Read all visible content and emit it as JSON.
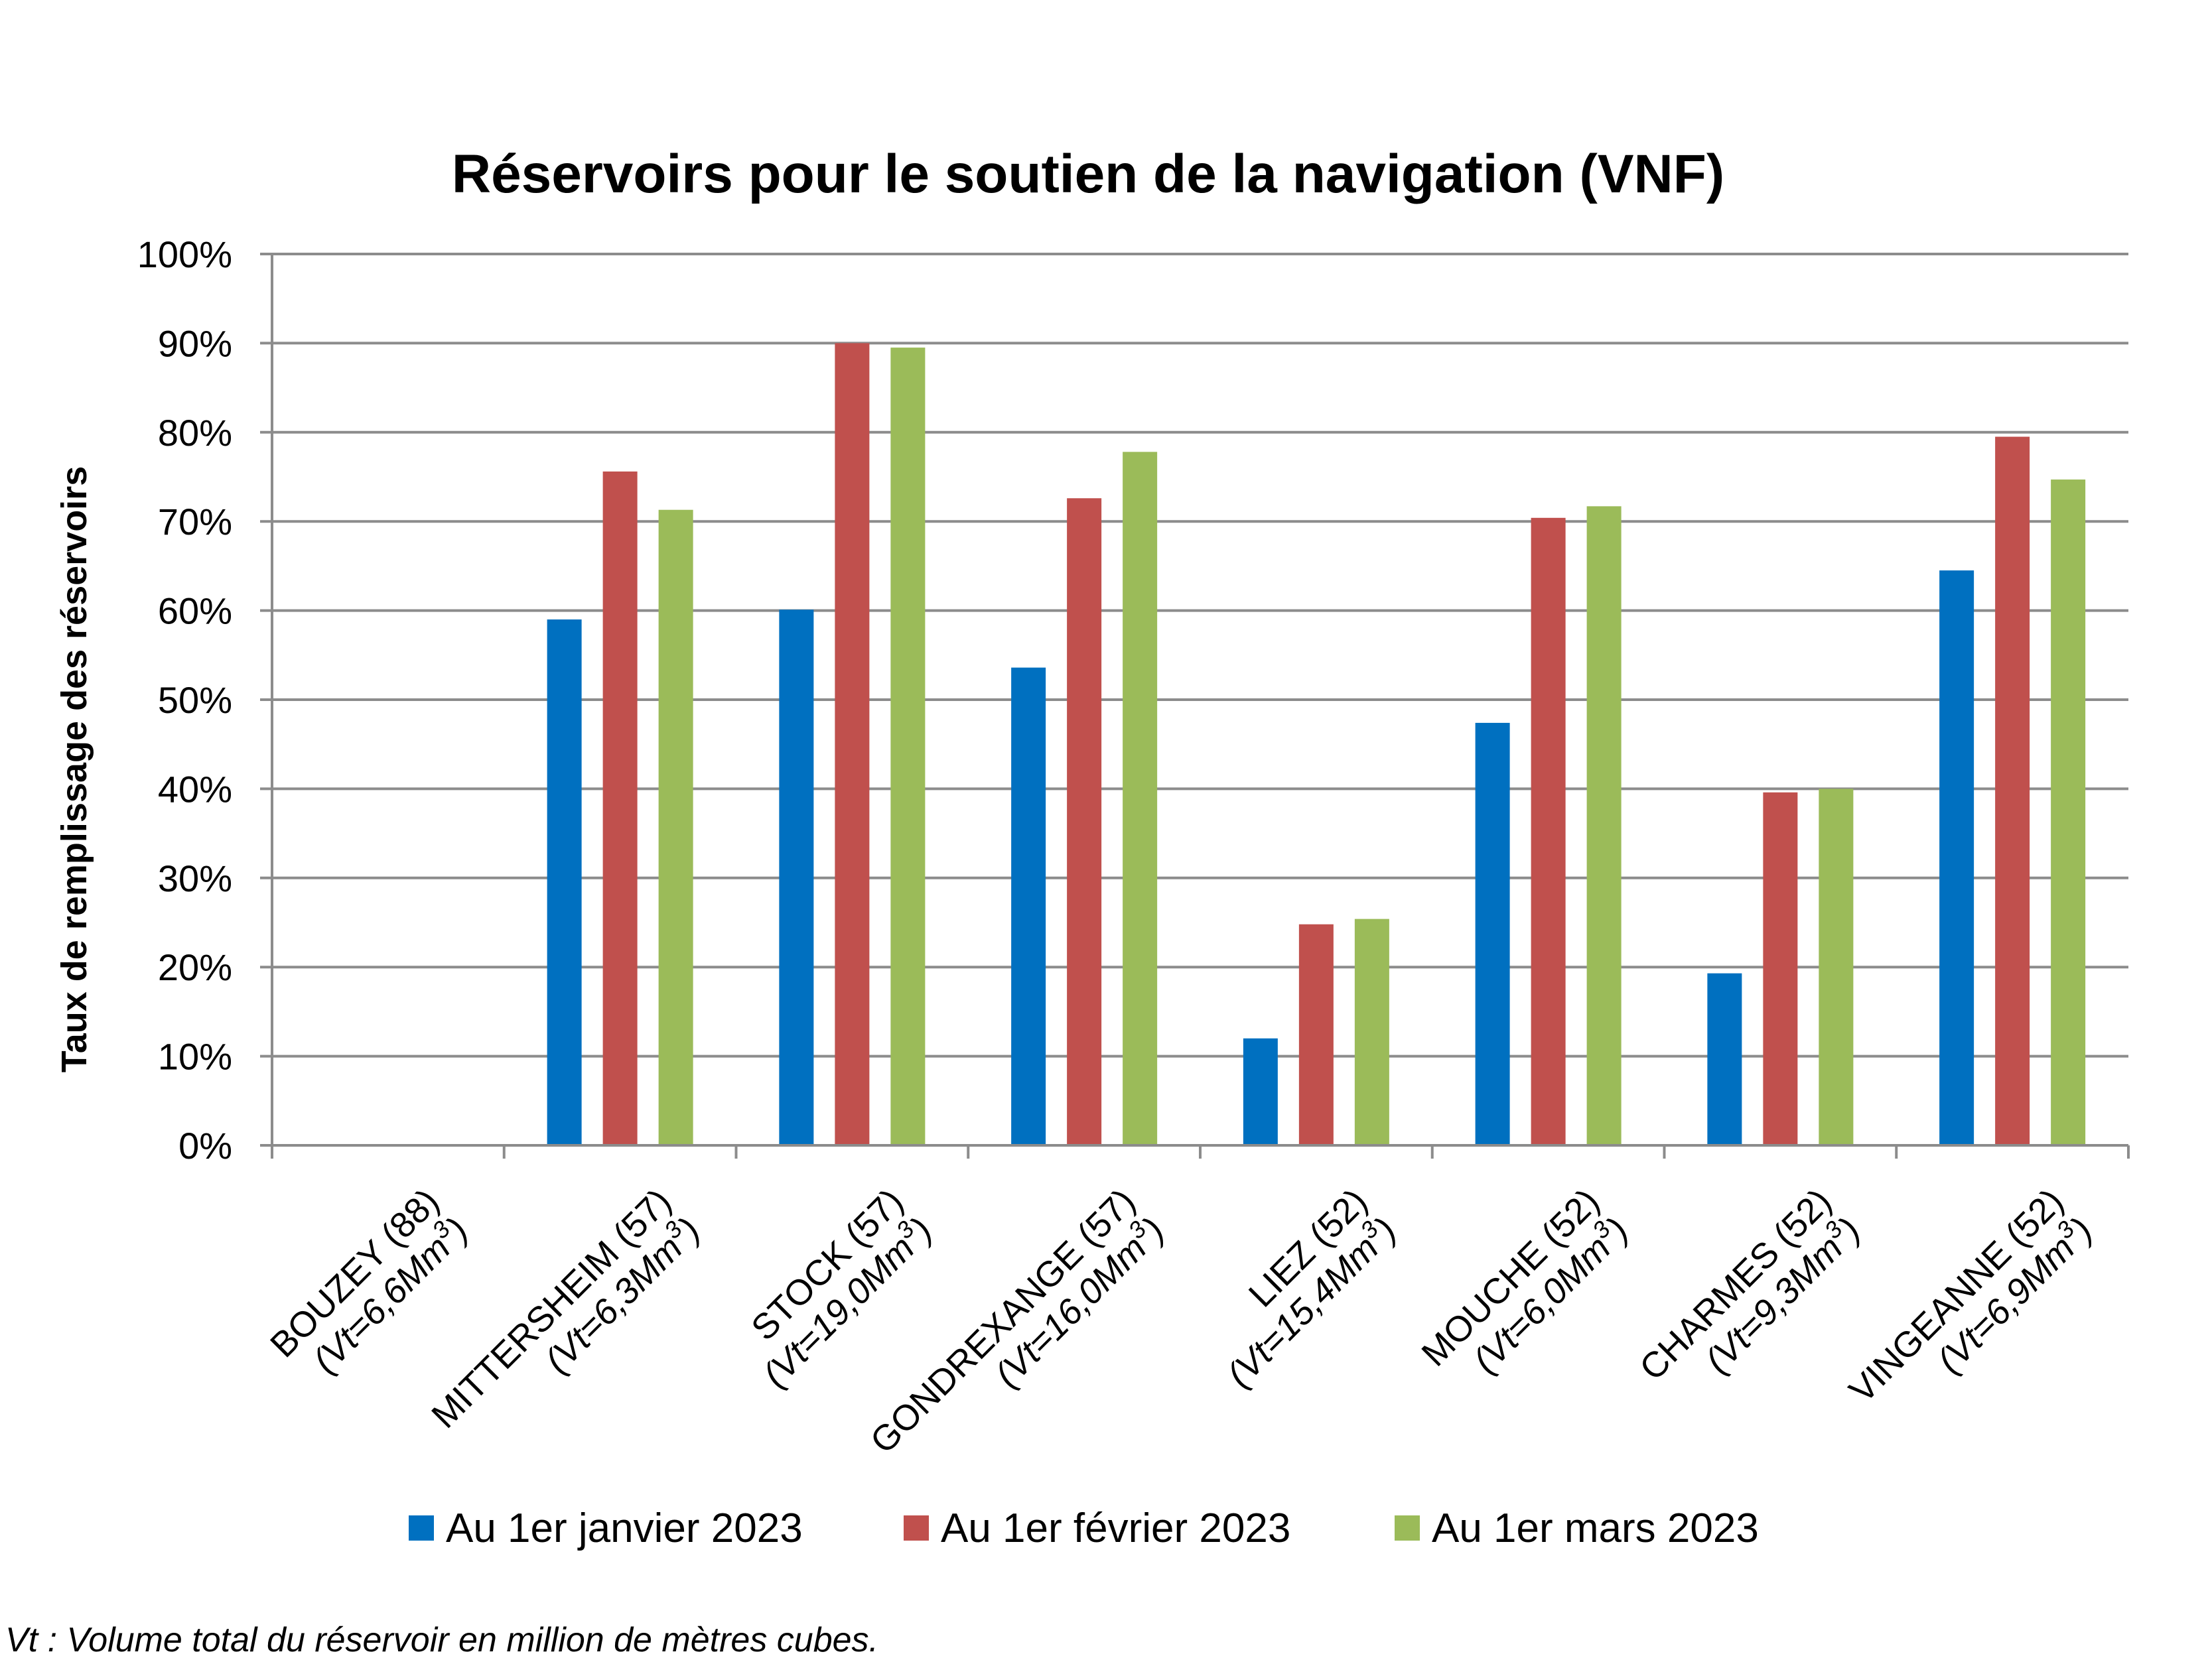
{
  "chart_data": {
    "type": "bar",
    "title": "Réservoirs pour le soutien de la navigation (VNF)",
    "ylabel": "Taux de remplissage des réservoirs",
    "xlabel": "",
    "ylim": [
      0,
      100
    ],
    "y_ticks": [
      "0%",
      "10%",
      "20%",
      "30%",
      "40%",
      "50%",
      "60%",
      "70%",
      "80%",
      "90%",
      "100%"
    ],
    "categories": [
      {
        "name": "BOUZEY (88)",
        "sub": "(Vt=6,6Mm",
        "sup": "3",
        "close": ")"
      },
      {
        "name": "MITTERSHEIM (57)",
        "sub": "(Vt=6,3Mm",
        "sup": "3",
        "close": ")"
      },
      {
        "name": "STOCK (57)",
        "sub": "(Vt=19,0Mm",
        "sup": "3",
        "close": ")"
      },
      {
        "name": "GONDREXANGE (57)",
        "sub": "(Vt=16,0Mm",
        "sup": "3",
        "close": ")"
      },
      {
        "name": "LIEZ (52)",
        "sub": "(Vt=15,4Mm",
        "sup": "3",
        "close": ")"
      },
      {
        "name": "MOUCHE (52)",
        "sub": "(Vt=6,0Mm",
        "sup": "3",
        "close": ")"
      },
      {
        "name": "CHARMES (52)",
        "sub": "(Vt=9,3Mm",
        "sup": "3",
        "close": ")"
      },
      {
        "name": "VINGEANNE (52)",
        "sub": "(Vt=6,9Mm",
        "sup": "3",
        "close": ")"
      }
    ],
    "series": [
      {
        "name": "Au 1er janvier 2023",
        "color": "#0070C0",
        "values": [
          null,
          59.0,
          60.1,
          53.6,
          12.0,
          47.4,
          19.3,
          64.5
        ]
      },
      {
        "name": "Au 1er février 2023",
        "color": "#C0504D",
        "values": [
          null,
          75.6,
          90.0,
          72.6,
          24.8,
          70.4,
          39.6,
          79.5
        ]
      },
      {
        "name": "Au 1er mars 2023",
        "color": "#9BBB59",
        "values": [
          null,
          71.3,
          89.5,
          77.8,
          25.4,
          71.7,
          40.0,
          74.7
        ]
      }
    ],
    "grid": true,
    "legend_position": "bottom",
    "footnote": "Vt : Volume total du réservoir en million de mètres cubes."
  }
}
